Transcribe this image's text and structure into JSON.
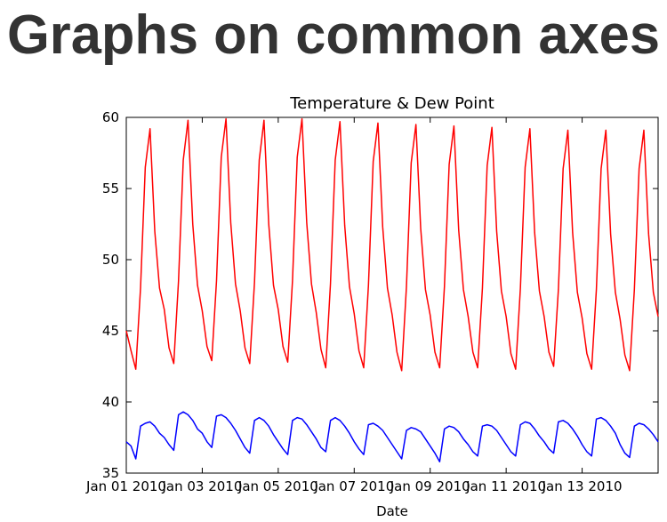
{
  "header": {
    "title": "Graphs on common axes"
  },
  "chart_data": {
    "type": "line",
    "title": "Temperature & Dew Point",
    "x_label": "Date",
    "x": [
      "2010-01-01 00:00",
      "2010-01-01 03:00",
      "2010-01-01 06:00",
      "2010-01-01 09:00",
      "2010-01-01 12:00",
      "2010-01-01 15:00",
      "2010-01-01 18:00",
      "2010-01-01 21:00",
      "2010-01-02 00:00",
      "2010-01-02 03:00",
      "2010-01-02 06:00",
      "2010-01-02 09:00",
      "2010-01-02 12:00",
      "2010-01-02 15:00",
      "2010-01-02 18:00",
      "2010-01-02 21:00",
      "2010-01-03 00:00",
      "2010-01-03 03:00",
      "2010-01-03 06:00",
      "2010-01-03 09:00",
      "2010-01-03 12:00",
      "2010-01-03 15:00",
      "2010-01-03 18:00",
      "2010-01-03 21:00",
      "2010-01-04 00:00",
      "2010-01-04 03:00",
      "2010-01-04 06:00",
      "2010-01-04 09:00",
      "2010-01-04 12:00",
      "2010-01-04 15:00",
      "2010-01-04 18:00",
      "2010-01-04 21:00",
      "2010-01-05 00:00",
      "2010-01-05 03:00",
      "2010-01-05 06:00",
      "2010-01-05 09:00",
      "2010-01-05 12:00",
      "2010-01-05 15:00",
      "2010-01-05 18:00",
      "2010-01-05 21:00",
      "2010-01-06 00:00",
      "2010-01-06 03:00",
      "2010-01-06 06:00",
      "2010-01-06 09:00",
      "2010-01-06 12:00",
      "2010-01-06 15:00",
      "2010-01-06 18:00",
      "2010-01-06 21:00",
      "2010-01-07 00:00",
      "2010-01-07 03:00",
      "2010-01-07 06:00",
      "2010-01-07 09:00",
      "2010-01-07 12:00",
      "2010-01-07 15:00",
      "2010-01-07 18:00",
      "2010-01-07 21:00",
      "2010-01-08 00:00",
      "2010-01-08 03:00",
      "2010-01-08 06:00",
      "2010-01-08 09:00",
      "2010-01-08 12:00",
      "2010-01-08 15:00",
      "2010-01-08 18:00",
      "2010-01-08 21:00",
      "2010-01-09 00:00",
      "2010-01-09 03:00",
      "2010-01-09 06:00",
      "2010-01-09 09:00",
      "2010-01-09 12:00",
      "2010-01-09 15:00",
      "2010-01-09 18:00",
      "2010-01-09 21:00",
      "2010-01-10 00:00",
      "2010-01-10 03:00",
      "2010-01-10 06:00",
      "2010-01-10 09:00",
      "2010-01-10 12:00",
      "2010-01-10 15:00",
      "2010-01-10 18:00",
      "2010-01-10 21:00",
      "2010-01-11 00:00",
      "2010-01-11 03:00",
      "2010-01-11 06:00",
      "2010-01-11 09:00",
      "2010-01-11 12:00",
      "2010-01-11 15:00",
      "2010-01-11 18:00",
      "2010-01-11 21:00",
      "2010-01-12 00:00",
      "2010-01-12 03:00",
      "2010-01-12 06:00",
      "2010-01-12 09:00",
      "2010-01-12 12:00",
      "2010-01-12 15:00",
      "2010-01-12 18:00",
      "2010-01-12 21:00",
      "2010-01-13 00:00",
      "2010-01-13 03:00",
      "2010-01-13 06:00",
      "2010-01-13 09:00",
      "2010-01-13 12:00",
      "2010-01-13 15:00",
      "2010-01-13 18:00",
      "2010-01-13 21:00",
      "2010-01-14 00:00",
      "2010-01-14 03:00",
      "2010-01-14 06:00",
      "2010-01-14 09:00",
      "2010-01-14 12:00",
      "2010-01-14 15:00",
      "2010-01-14 18:00",
      "2010-01-14 21:00",
      "2010-01-15 00:00"
    ],
    "series": [
      {
        "color": "#ff0000",
        "values": [
          45.0,
          43.6,
          42.3,
          48.0,
          56.5,
          59.2,
          52.0,
          48.0,
          46.5,
          43.8,
          42.7,
          48.5,
          57.0,
          59.8,
          52.5,
          48.2,
          46.4,
          43.9,
          42.9,
          48.5,
          57.2,
          59.9,
          52.6,
          48.3,
          46.4,
          43.8,
          42.7,
          48.4,
          57.0,
          59.8,
          52.5,
          48.2,
          46.5,
          43.9,
          42.8,
          48.5,
          57.2,
          59.9,
          52.6,
          48.3,
          46.3,
          43.7,
          42.4,
          48.3,
          57.0,
          59.7,
          52.4,
          48.1,
          46.2,
          43.6,
          42.4,
          48.2,
          56.9,
          59.6,
          52.3,
          48.0,
          46.1,
          43.5,
          42.2,
          48.1,
          56.8,
          59.5,
          52.2,
          47.9,
          46.1,
          43.5,
          42.4,
          48.1,
          56.7,
          59.4,
          52.1,
          47.9,
          46.0,
          43.5,
          42.4,
          48.0,
          56.6,
          59.3,
          52.0,
          47.8,
          46.0,
          43.4,
          42.3,
          48.0,
          56.5,
          59.2,
          51.9,
          47.8,
          46.0,
          43.5,
          42.5,
          47.9,
          56.4,
          59.1,
          51.9,
          47.7,
          45.9,
          43.4,
          42.3,
          47.9,
          56.4,
          59.1,
          51.8,
          47.7,
          45.8,
          43.3,
          42.2,
          47.9,
          56.4,
          59.1,
          51.8,
          47.7,
          46.0
        ]
      },
      {
        "color": "#0000ff",
        "values": [
          37.2,
          36.9,
          36.0,
          38.3,
          38.5,
          38.6,
          38.3,
          37.8,
          37.5,
          37.0,
          36.6,
          39.1,
          39.3,
          39.1,
          38.7,
          38.1,
          37.8,
          37.2,
          36.8,
          39.0,
          39.1,
          38.9,
          38.5,
          38.0,
          37.4,
          36.8,
          36.4,
          38.7,
          38.9,
          38.7,
          38.3,
          37.7,
          37.2,
          36.7,
          36.3,
          38.7,
          38.9,
          38.8,
          38.4,
          37.9,
          37.4,
          36.8,
          36.5,
          38.7,
          38.9,
          38.7,
          38.3,
          37.8,
          37.2,
          36.7,
          36.3,
          38.4,
          38.5,
          38.3,
          38.0,
          37.5,
          37.0,
          36.5,
          36.0,
          38.0,
          38.2,
          38.1,
          37.9,
          37.4,
          36.9,
          36.4,
          35.8,
          38.1,
          38.3,
          38.2,
          37.9,
          37.4,
          37.0,
          36.5,
          36.2,
          38.3,
          38.4,
          38.3,
          38.0,
          37.5,
          37.0,
          36.5,
          36.2,
          38.4,
          38.6,
          38.5,
          38.1,
          37.6,
          37.2,
          36.7,
          36.4,
          38.6,
          38.7,
          38.5,
          38.1,
          37.6,
          37.0,
          36.5,
          36.2,
          38.8,
          38.9,
          38.7,
          38.3,
          37.8,
          37.0,
          36.4,
          36.1,
          38.3,
          38.5,
          38.4,
          38.1,
          37.7,
          37.2
        ]
      }
    ],
    "xlim": [
      "2010-01-01 00:00",
      "2010-01-15 00:00"
    ],
    "xticks": [
      {
        "value": "2010-01-01 00:00",
        "label": "Jan 01 2010"
      },
      {
        "value": "2010-01-03 00:00",
        "label": "Jan 03 2010"
      },
      {
        "value": "2010-01-05 00:00",
        "label": "Jan 05 2010"
      },
      {
        "value": "2010-01-07 00:00",
        "label": "Jan 07 2010"
      },
      {
        "value": "2010-01-09 00:00",
        "label": "Jan 09 2010"
      },
      {
        "value": "2010-01-11 00:00",
        "label": "Jan 11 2010"
      },
      {
        "value": "2010-01-13 00:00",
        "label": "Jan 13 2010"
      }
    ],
    "ylim": [
      35,
      60
    ],
    "yticks": [
      35,
      40,
      45,
      50,
      55,
      60
    ],
    "grid": false
  }
}
